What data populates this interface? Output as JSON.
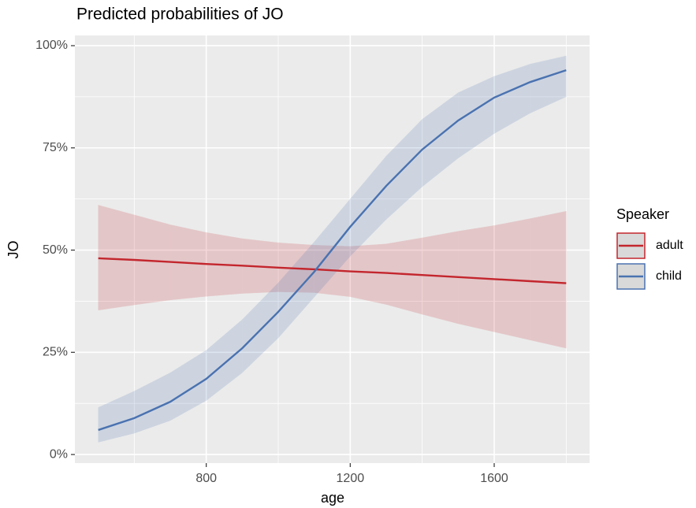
{
  "chart_data": {
    "type": "line",
    "title": "Predicted probabilities of JO",
    "x_label": "age",
    "y_label": "JO",
    "x": [
      500,
      600,
      700,
      800,
      900,
      1000,
      1100,
      1200,
      1300,
      1400,
      1500,
      1600,
      1700,
      1800
    ],
    "series": [
      {
        "name": "adult",
        "color": "#c3262d",
        "values": [
          48.0,
          47.6,
          47.1,
          46.6,
          46.2,
          45.7,
          45.3,
          44.8,
          44.4,
          43.9,
          43.4,
          42.9,
          42.4,
          41.9
        ],
        "lower": [
          35.3,
          36.6,
          37.8,
          38.7,
          39.4,
          39.8,
          39.6,
          38.6,
          36.7,
          34.3,
          32,
          30,
          28,
          26
        ],
        "upper": [
          61,
          58.6,
          56.2,
          54.3,
          52.8,
          51.8,
          51.2,
          50.9,
          51.5,
          53,
          54.6,
          56,
          57.7,
          59.5
        ]
      },
      {
        "name": "child",
        "color": "#4a72b0",
        "values": [
          6.0,
          8.9,
          12.9,
          18.5,
          26,
          34.9,
          44.7,
          55.7,
          65.7,
          74.6,
          81.7,
          87.3,
          91.1,
          94.0
        ],
        "lower": [
          3,
          5.2,
          8.3,
          13.2,
          20,
          28.5,
          38.5,
          48.5,
          57.5,
          65.5,
          72.5,
          78.5,
          83.5,
          87.5
        ],
        "upper": [
          11.5,
          15.5,
          20,
          25.5,
          33,
          42,
          52,
          62.5,
          73,
          82,
          88.5,
          92.5,
          95.5,
          97.5
        ]
      }
    ],
    "legend_title": "Speaker",
    "legend_position": "right",
    "xlim": [
      435,
      1865
    ],
    "ylim": [
      -2.1,
      102.5
    ],
    "xticks": [
      800,
      1200,
      1600
    ],
    "yticks": [
      {
        "value": 0,
        "label": "0%"
      },
      {
        "value": 25,
        "label": "25%"
      },
      {
        "value": 50,
        "label": "50%"
      },
      {
        "value": 75,
        "label": "75%"
      },
      {
        "value": 100,
        "label": "100%"
      }
    ],
    "xminor": [
      600,
      1000,
      1400,
      1800
    ],
    "yminor": [
      12.5,
      37.5,
      62.5,
      87.5
    ],
    "grid": true,
    "panel_color": "#ebebeb"
  }
}
